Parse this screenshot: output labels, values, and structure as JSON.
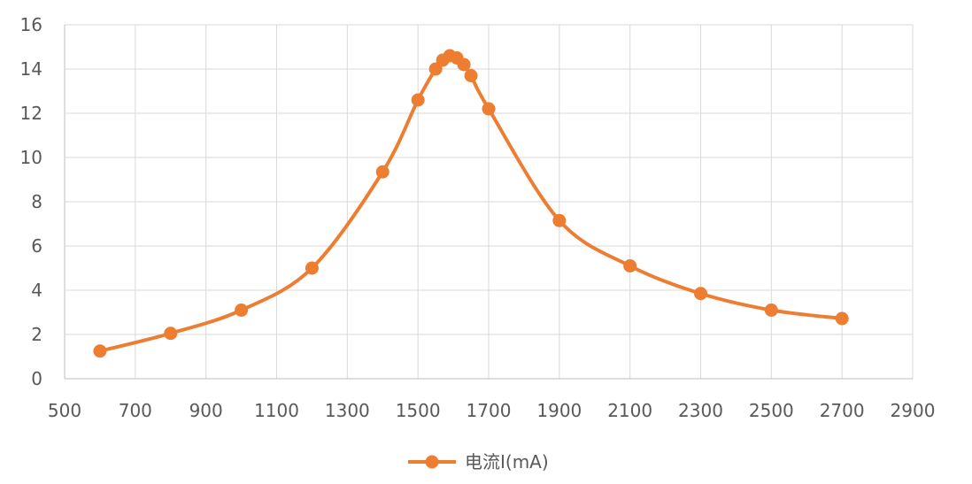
{
  "chart_data": {
    "type": "scatter",
    "title": "",
    "xlabel": "",
    "ylabel": "",
    "xlim": [
      500,
      2900
    ],
    "ylim": [
      0,
      16
    ],
    "x_ticks": [
      500,
      700,
      900,
      1100,
      1300,
      1500,
      1700,
      1900,
      2100,
      2300,
      2500,
      2700,
      2900
    ],
    "y_ticks": [
      0,
      2,
      4,
      6,
      8,
      10,
      12,
      14,
      16
    ],
    "grid": true,
    "legend_position": "bottom",
    "line_style": "smooth",
    "series": [
      {
        "name": "电流I(mA)",
        "color": "#ED7D31",
        "marker": "circle",
        "points": [
          {
            "x": 600,
            "y": 1.25
          },
          {
            "x": 800,
            "y": 2.05
          },
          {
            "x": 1000,
            "y": 3.1
          },
          {
            "x": 1200,
            "y": 5.0
          },
          {
            "x": 1400,
            "y": 9.35
          },
          {
            "x": 1500,
            "y": 12.6
          },
          {
            "x": 1550,
            "y": 14.0
          },
          {
            "x": 1570,
            "y": 14.4
          },
          {
            "x": 1590,
            "y": 14.6
          },
          {
            "x": 1610,
            "y": 14.5
          },
          {
            "x": 1630,
            "y": 14.2
          },
          {
            "x": 1650,
            "y": 13.7
          },
          {
            "x": 1700,
            "y": 12.2
          },
          {
            "x": 1900,
            "y": 7.15
          },
          {
            "x": 2100,
            "y": 5.1
          },
          {
            "x": 2300,
            "y": 3.85
          },
          {
            "x": 2500,
            "y": 3.1
          },
          {
            "x": 2700,
            "y": 2.72
          }
        ]
      }
    ]
  }
}
